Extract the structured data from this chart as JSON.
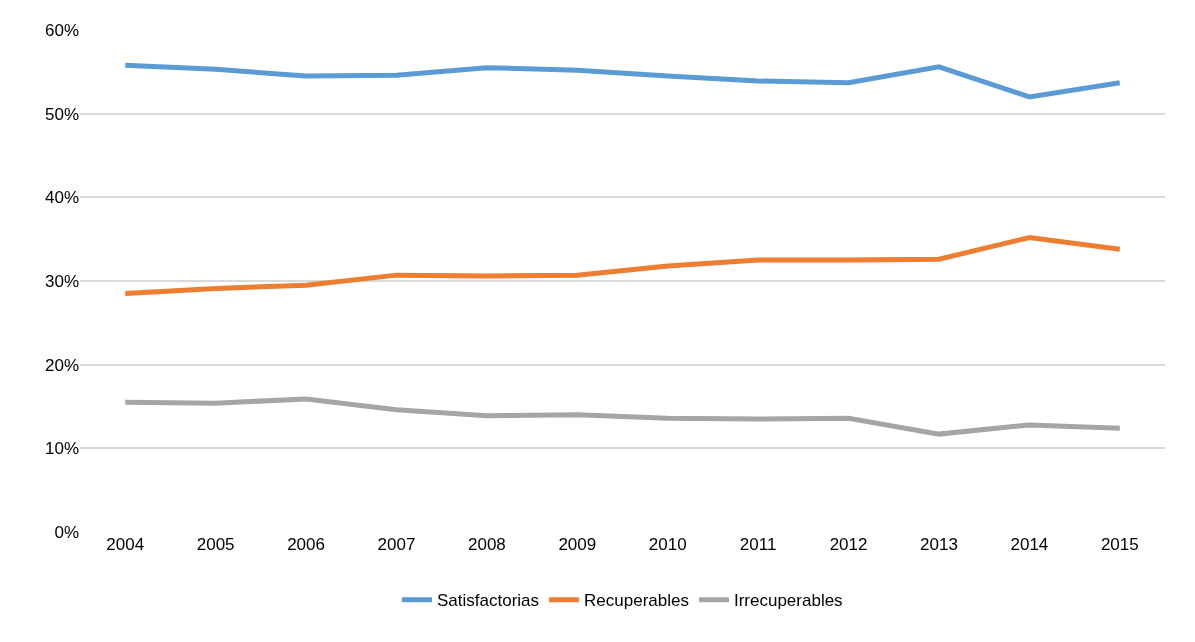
{
  "chart_data": {
    "type": "line",
    "categories": [
      "2004",
      "2005",
      "2006",
      "2007",
      "2008",
      "2009",
      "2010",
      "2011",
      "2012",
      "2013",
      "2014",
      "2015"
    ],
    "series": [
      {
        "name": "Satisfactorias",
        "color": "#5b9bd5",
        "values": [
          55.8,
          55.3,
          54.5,
          54.6,
          55.5,
          55.2,
          54.5,
          53.9,
          53.7,
          55.6,
          52.0,
          53.7
        ]
      },
      {
        "name": "Recuperables",
        "color": "#ed7d31",
        "values": [
          28.5,
          29.1,
          29.5,
          30.7,
          30.6,
          30.7,
          31.8,
          32.5,
          32.5,
          32.6,
          35.2,
          33.8
        ]
      },
      {
        "name": "Irrecuperables",
        "color": "#a5a5a5",
        "values": [
          15.5,
          15.4,
          15.9,
          14.6,
          13.9,
          14.0,
          13.6,
          13.5,
          13.6,
          11.7,
          12.8,
          12.4
        ]
      }
    ],
    "ylim": [
      0,
      60
    ],
    "yticks": [
      {
        "value": 0,
        "label": "0%"
      },
      {
        "value": 10,
        "label": "10%"
      },
      {
        "value": 20,
        "label": "20%"
      },
      {
        "value": 30,
        "label": "30%"
      },
      {
        "value": 40,
        "label": "40%"
      },
      {
        "value": 50,
        "label": "50%"
      },
      {
        "value": 60,
        "label": "60%"
      }
    ],
    "grid": "y",
    "legend": "bottom",
    "marker": "none",
    "line_style": "solid"
  }
}
